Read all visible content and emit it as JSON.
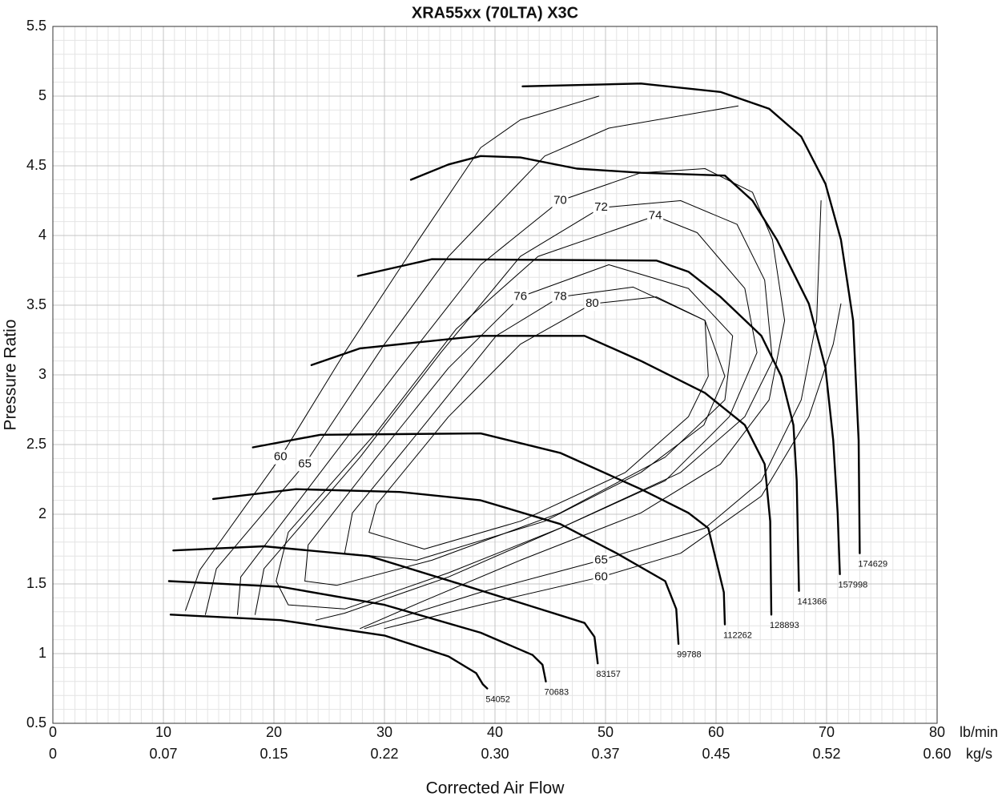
{
  "chart_data": {
    "type": "line",
    "title": "XRA55xx (70LTA) X3C",
    "x_label": "Corrected Air Flow",
    "y_label": "Pressure Ratio",
    "x_unit": "lb/min",
    "x2_unit": "kg/s",
    "xlim": [
      0,
      80
    ],
    "ylim": [
      0.5,
      5.5
    ],
    "xticks": [
      0,
      10,
      20,
      30,
      40,
      50,
      60,
      70,
      80
    ],
    "x2ticks": [
      0,
      0.07,
      {
        "value": 0.15,
        "label": "0.15"
      },
      0.22,
      {
        "value": 0.3,
        "label": "0.30"
      },
      0.37,
      0.45,
      0.52,
      {
        "value": 0.6,
        "label": "0.60"
      }
    ],
    "yticks": [
      0.5,
      1,
      1.5,
      2,
      2.5,
      3,
      3.5,
      4,
      4.5,
      5,
      5.5
    ],
    "grid": true,
    "minor_grid": true,
    "series": [
      {
        "name": "54052",
        "color": "#000000",
        "line_width": 2.4,
        "x": [
          10.65,
          20.6,
          30,
          35.8,
          38.3,
          38.9,
          39.3
        ],
        "values": [
          1.28,
          1.24,
          1.13,
          0.98,
          0.86,
          0.78,
          0.75
        ]
      },
      {
        "name": "70683",
        "color": "#000000",
        "line_width": 2.4,
        "x": [
          10.5,
          20.6,
          30,
          38.7,
          43.4,
          44.3,
          44.6
        ],
        "values": [
          1.52,
          1.48,
          1.35,
          1.15,
          0.99,
          0.92,
          0.8
        ]
      },
      {
        "name": "83157",
        "color": "#000000",
        "line_width": 2.4,
        "x": [
          10.9,
          19.1,
          28.6,
          37.2,
          44.5,
          48.1,
          49,
          49.3
        ],
        "values": [
          1.74,
          1.77,
          1.7,
          1.49,
          1.31,
          1.22,
          1.12,
          0.93
        ]
      },
      {
        "name": "99788",
        "color": "#000000",
        "line_width": 2.4,
        "x": [
          14.5,
          22,
          31.4,
          38.7,
          45.9,
          51,
          55.4,
          56.4,
          56.6
        ],
        "values": [
          2.11,
          2.18,
          2.16,
          2.1,
          1.93,
          1.72,
          1.52,
          1.32,
          1.07
        ]
      },
      {
        "name": "112262",
        "color": "#000000",
        "line_width": 2.4,
        "x": [
          18.1,
          24.2,
          38.7,
          45.9,
          53.2,
          57.5,
          59.3,
          60,
          60.7,
          60.8
        ],
        "values": [
          2.48,
          2.57,
          2.58,
          2.44,
          2.18,
          2.01,
          1.9,
          1.67,
          1.44,
          1.21
        ]
      },
      {
        "name": "128893",
        "color": "#000000",
        "line_width": 2.4,
        "x": [
          23.4,
          27.8,
          38.7,
          48.1,
          53.2,
          59,
          62.6,
          64.4,
          64.9,
          65
        ],
        "values": [
          3.07,
          3.19,
          3.28,
          3.28,
          3.1,
          2.87,
          2.64,
          2.36,
          1.95,
          1.28
        ]
      },
      {
        "name": "141366",
        "color": "#000000",
        "line_width": 2.4,
        "x": [
          27.6,
          34.3,
          54.6,
          57.5,
          60.4,
          64.1,
          65.9,
          67,
          67.3,
          67.5
        ],
        "values": [
          3.71,
          3.83,
          3.82,
          3.74,
          3.56,
          3.28,
          2.99,
          2.64,
          2.24,
          1.45
        ]
      },
      {
        "name": "157998",
        "color": "#000000",
        "line_width": 2.4,
        "x": [
          32.4,
          35.8,
          38.7,
          42.3,
          47.4,
          53.2,
          60.8,
          63.3,
          65.5,
          68.4,
          69.9,
          70.6,
          71,
          71.2
        ],
        "values": [
          4.4,
          4.51,
          4.57,
          4.56,
          4.48,
          4.45,
          4.43,
          4.25,
          3.97,
          3.51,
          3.05,
          2.53,
          2.01,
          1.57
        ]
      },
      {
        "name": "174629",
        "color": "#000000",
        "line_width": 2.4,
        "x": [
          42.5,
          53.2,
          60.4,
          64.8,
          67.7,
          69.9,
          71.3,
          72.4,
          72.9,
          73
        ],
        "values": [
          5.07,
          5.09,
          5.03,
          4.91,
          4.71,
          4.37,
          3.97,
          3.39,
          2.53,
          1.72
        ]
      },
      {
        "name": "60",
        "color": "#000000",
        "line_width": 1,
        "x": [
          12,
          13.3,
          20.6,
          26.4,
          33.1,
          38.7,
          42.3,
          49.4
        ],
        "values": [
          1.31,
          1.6,
          2.41,
          3.16,
          3.97,
          4.63,
          4.83,
          5.0
        ]
      },
      {
        "name": "60",
        "color": "#000000",
        "line_width": 1,
        "x": [
          30,
          38.7,
          49.6,
          56.8,
          64.1,
          68.4,
          70.6,
          71.3
        ],
        "values": [
          1.18,
          1.35,
          1.55,
          1.72,
          2.13,
          2.7,
          3.22,
          3.51
        ]
      },
      {
        "name": "65",
        "color": "#000000",
        "line_width": 1,
        "x": [
          13.8,
          14.8,
          22.8,
          30,
          35.8,
          44.5,
          50.3,
          62
        ],
        "values": [
          1.28,
          1.61,
          2.36,
          3.22,
          3.85,
          4.57,
          4.77,
          4.93
        ]
      },
      {
        "name": "65",
        "color": "#000000",
        "line_width": 1,
        "x": [
          28.2,
          38.7,
          49.6,
          59,
          64.1,
          67.7,
          69.1,
          69.5
        ],
        "values": [
          1.18,
          1.44,
          1.67,
          1.9,
          2.24,
          2.82,
          3.39,
          4.25
        ]
      },
      {
        "name": "70",
        "color": "#000000",
        "line_width": 1,
        "x": [
          16.7,
          17,
          24.2,
          31.4,
          38.7,
          45.9,
          53.2,
          59,
          63.3,
          65.1,
          66.2,
          64.8,
          60.4,
          53.2,
          42.3,
          33.6,
          27.8
        ],
        "values": [
          1.28,
          1.55,
          2.3,
          3.05,
          3.79,
          4.25,
          4.45,
          4.48,
          4.31,
          3.97,
          3.39,
          2.82,
          2.36,
          2.01,
          1.67,
          1.38,
          1.18
        ]
      },
      {
        "name": "72",
        "color": "#000000",
        "line_width": 1,
        "x": [
          18.3,
          19.1,
          27.8,
          35.1,
          42.3,
          49.6,
          56.8,
          61.9,
          64.4,
          65.1,
          62.6,
          56.8,
          45.9,
          35.8,
          26.4,
          23.8
        ],
        "values": [
          1.28,
          1.61,
          2.41,
          3.16,
          3.85,
          4.2,
          4.25,
          4.08,
          3.68,
          3.1,
          2.7,
          2.3,
          1.9,
          1.55,
          1.29,
          1.24
        ]
      },
      {
        "name": "74",
        "color": "#000000",
        "line_width": 1,
        "x": [
          20.2,
          21.3,
          29.3,
          36.5,
          43.9,
          54.5,
          58.3,
          62.6,
          63.7,
          61.2,
          55.4,
          45.9,
          35.8,
          26.4,
          21.3,
          20.2
        ],
        "values": [
          1.52,
          1.87,
          2.59,
          3.33,
          3.85,
          4.14,
          4.02,
          3.62,
          3.16,
          2.7,
          2.24,
          1.9,
          1.58,
          1.32,
          1.35,
          1.52
        ]
      },
      {
        "name": "76",
        "color": "#000000",
        "line_width": 1,
        "x": [
          22.8,
          23.1,
          29.3,
          35.8,
          42.3,
          50.3,
          57.5,
          61.5,
          60.8,
          55.4,
          45.9,
          34.3,
          25.7,
          22.8
        ],
        "values": [
          1.52,
          1.78,
          2.41,
          3.05,
          3.56,
          3.79,
          3.62,
          3.28,
          2.82,
          2.41,
          2.01,
          1.67,
          1.49,
          1.52
        ]
      },
      {
        "name": "78",
        "color": "#000000",
        "line_width": 1,
        "x": [
          26.4,
          27.1,
          33.6,
          40.1,
          45.9,
          52.5,
          59,
          60.8,
          58.9,
          53.2,
          44.5,
          32.9,
          26.4
        ],
        "values": [
          1.72,
          2.01,
          2.64,
          3.28,
          3.56,
          3.63,
          3.39,
          2.99,
          2.64,
          2.3,
          1.95,
          1.67,
          1.72
        ]
      },
      {
        "name": "80",
        "color": "#000000",
        "line_width": 1,
        "x": [
          28.6,
          29.3,
          35.8,
          42.3,
          48.8,
          54.6,
          59,
          59.3,
          57.5,
          51.8,
          42.3,
          33.6,
          28.6
        ],
        "values": [
          1.87,
          2.07,
          2.7,
          3.22,
          3.51,
          3.56,
          3.39,
          2.99,
          2.7,
          2.3,
          1.95,
          1.75,
          1.87
        ]
      }
    ]
  }
}
